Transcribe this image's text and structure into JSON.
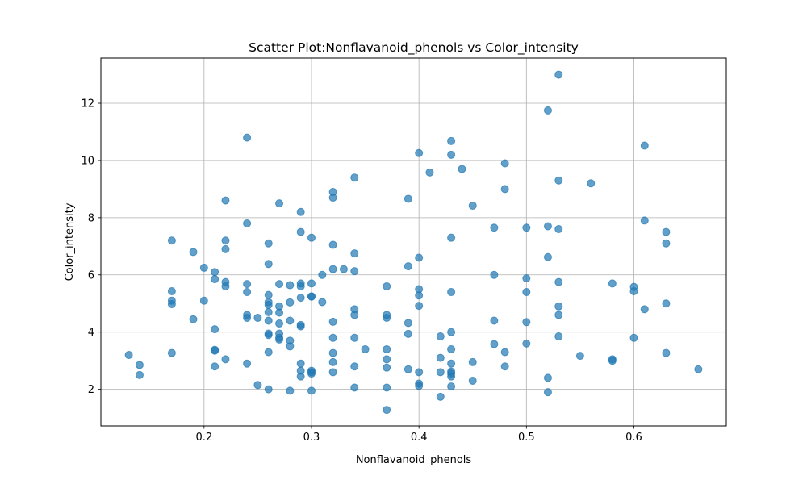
{
  "chart_data": {
    "type": "scatter",
    "title": "Scatter Plot:Nonflavanoid_phenols vs Color_intensity",
    "xlabel": "Nonflavanoid_phenols",
    "ylabel": "Color_intensity",
    "xlim": [
      0.104,
      0.686
    ],
    "ylim": [
      0.72,
      13.58
    ],
    "xticks": [
      0.2,
      0.3,
      0.4,
      0.5,
      0.6
    ],
    "xtick_labels": [
      "0.2",
      "0.3",
      "0.4",
      "0.5",
      "0.6"
    ],
    "yticks": [
      2,
      4,
      6,
      8,
      10,
      12
    ],
    "ytick_labels": [
      "2",
      "4",
      "6",
      "8",
      "10",
      "12"
    ],
    "grid": true,
    "marker_color": "#1f77b4",
    "marker_alpha": 0.7,
    "points": [
      [
        0.13,
        3.2
      ],
      [
        0.14,
        2.85
      ],
      [
        0.14,
        2.5
      ],
      [
        0.17,
        7.2
      ],
      [
        0.17,
        5.43
      ],
      [
        0.17,
        5.1
      ],
      [
        0.17,
        4.98
      ],
      [
        0.17,
        3.27
      ],
      [
        0.19,
        6.8
      ],
      [
        0.19,
        4.45
      ],
      [
        0.2,
        6.25
      ],
      [
        0.2,
        5.1
      ],
      [
        0.21,
        6.1
      ],
      [
        0.21,
        5.85
      ],
      [
        0.21,
        4.1
      ],
      [
        0.21,
        3.38
      ],
      [
        0.21,
        3.35
      ],
      [
        0.21,
        2.8
      ],
      [
        0.22,
        8.6
      ],
      [
        0.22,
        7.2
      ],
      [
        0.22,
        6.9
      ],
      [
        0.22,
        5.75
      ],
      [
        0.22,
        5.6
      ],
      [
        0.22,
        3.05
      ],
      [
        0.24,
        10.8
      ],
      [
        0.24,
        7.8
      ],
      [
        0.24,
        5.68
      ],
      [
        0.24,
        5.4
      ],
      [
        0.24,
        4.6
      ],
      [
        0.24,
        4.5
      ],
      [
        0.24,
        2.9
      ],
      [
        0.25,
        4.5
      ],
      [
        0.25,
        2.15
      ],
      [
        0.26,
        7.1
      ],
      [
        0.26,
        6.38
      ],
      [
        0.26,
        5.3
      ],
      [
        0.26,
        5.05
      ],
      [
        0.26,
        4.95
      ],
      [
        0.26,
        4.7
      ],
      [
        0.26,
        4.4
      ],
      [
        0.26,
        3.95
      ],
      [
        0.26,
        3.9
      ],
      [
        0.26,
        3.3
      ],
      [
        0.26,
        2.0
      ],
      [
        0.27,
        8.5
      ],
      [
        0.27,
        5.68
      ],
      [
        0.27,
        4.9
      ],
      [
        0.27,
        4.68
      ],
      [
        0.27,
        4.3
      ],
      [
        0.27,
        3.95
      ],
      [
        0.27,
        3.8
      ],
      [
        0.27,
        3.74
      ],
      [
        0.28,
        5.64
      ],
      [
        0.28,
        5.04
      ],
      [
        0.28,
        4.4
      ],
      [
        0.28,
        3.7
      ],
      [
        0.28,
        3.5
      ],
      [
        0.28,
        1.95
      ],
      [
        0.29,
        8.2
      ],
      [
        0.29,
        7.5
      ],
      [
        0.29,
        5.7
      ],
      [
        0.29,
        5.6
      ],
      [
        0.29,
        5.2
      ],
      [
        0.29,
        4.25
      ],
      [
        0.29,
        4.2
      ],
      [
        0.29,
        2.9
      ],
      [
        0.29,
        2.65
      ],
      [
        0.29,
        2.45
      ],
      [
        0.3,
        7.3
      ],
      [
        0.3,
        5.7
      ],
      [
        0.3,
        5.25
      ],
      [
        0.3,
        5.24
      ],
      [
        0.3,
        2.65
      ],
      [
        0.3,
        2.6
      ],
      [
        0.3,
        2.55
      ],
      [
        0.3,
        1.95
      ],
      [
        0.31,
        6.0
      ],
      [
        0.31,
        5.05
      ],
      [
        0.32,
        8.9
      ],
      [
        0.32,
        8.7
      ],
      [
        0.32,
        7.05
      ],
      [
        0.32,
        6.2
      ],
      [
        0.32,
        4.36
      ],
      [
        0.32,
        3.8
      ],
      [
        0.32,
        3.27
      ],
      [
        0.32,
        2.95
      ],
      [
        0.32,
        2.6
      ],
      [
        0.33,
        6.2
      ],
      [
        0.34,
        9.4
      ],
      [
        0.34,
        6.75
      ],
      [
        0.34,
        6.13
      ],
      [
        0.34,
        4.8
      ],
      [
        0.34,
        4.6
      ],
      [
        0.34,
        3.8
      ],
      [
        0.34,
        2.8
      ],
      [
        0.34,
        2.06
      ],
      [
        0.35,
        3.4
      ],
      [
        0.37,
        5.6
      ],
      [
        0.37,
        4.6
      ],
      [
        0.37,
        4.5
      ],
      [
        0.37,
        3.4
      ],
      [
        0.37,
        3.05
      ],
      [
        0.37,
        2.76
      ],
      [
        0.37,
        2.06
      ],
      [
        0.37,
        1.28
      ],
      [
        0.39,
        8.66
      ],
      [
        0.39,
        6.3
      ],
      [
        0.39,
        4.32
      ],
      [
        0.39,
        3.94
      ],
      [
        0.39,
        2.7
      ],
      [
        0.4,
        10.26
      ],
      [
        0.4,
        6.6
      ],
      [
        0.4,
        5.5
      ],
      [
        0.4,
        5.28
      ],
      [
        0.4,
        4.92
      ],
      [
        0.4,
        2.6
      ],
      [
        0.4,
        2.2
      ],
      [
        0.4,
        2.12
      ],
      [
        0.41,
        9.58
      ],
      [
        0.42,
        3.85
      ],
      [
        0.42,
        3.1
      ],
      [
        0.42,
        2.6
      ],
      [
        0.42,
        1.74
      ],
      [
        0.43,
        10.68
      ],
      [
        0.43,
        10.2
      ],
      [
        0.43,
        7.3
      ],
      [
        0.43,
        5.4
      ],
      [
        0.43,
        4.0
      ],
      [
        0.43,
        3.4
      ],
      [
        0.43,
        2.9
      ],
      [
        0.43,
        2.62
      ],
      [
        0.43,
        2.55
      ],
      [
        0.43,
        2.45
      ],
      [
        0.43,
        2.1
      ],
      [
        0.44,
        9.7
      ],
      [
        0.45,
        8.42
      ],
      [
        0.45,
        2.95
      ],
      [
        0.45,
        2.3
      ],
      [
        0.47,
        7.65
      ],
      [
        0.47,
        6.0
      ],
      [
        0.47,
        4.4
      ],
      [
        0.47,
        3.58
      ],
      [
        0.48,
        9.9
      ],
      [
        0.48,
        9.0
      ],
      [
        0.48,
        3.3
      ],
      [
        0.48,
        2.8
      ],
      [
        0.5,
        7.65
      ],
      [
        0.5,
        5.88
      ],
      [
        0.5,
        5.4
      ],
      [
        0.5,
        4.35
      ],
      [
        0.5,
        3.6
      ],
      [
        0.52,
        11.75
      ],
      [
        0.52,
        7.7
      ],
      [
        0.52,
        6.62
      ],
      [
        0.52,
        2.4
      ],
      [
        0.52,
        1.9
      ],
      [
        0.53,
        13.0
      ],
      [
        0.53,
        9.3
      ],
      [
        0.53,
        7.6
      ],
      [
        0.53,
        5.75
      ],
      [
        0.53,
        4.9
      ],
      [
        0.53,
        4.6
      ],
      [
        0.53,
        3.85
      ],
      [
        0.55,
        3.17
      ],
      [
        0.56,
        9.2
      ],
      [
        0.58,
        5.7
      ],
      [
        0.58,
        3.05
      ],
      [
        0.58,
        3.0
      ],
      [
        0.6,
        5.58
      ],
      [
        0.6,
        5.43
      ],
      [
        0.6,
        3.8
      ],
      [
        0.61,
        10.52
      ],
      [
        0.61,
        7.9
      ],
      [
        0.61,
        4.8
      ],
      [
        0.63,
        7.5
      ],
      [
        0.63,
        7.1
      ],
      [
        0.63,
        5.0
      ],
      [
        0.63,
        3.27
      ],
      [
        0.66,
        2.7
      ]
    ]
  }
}
